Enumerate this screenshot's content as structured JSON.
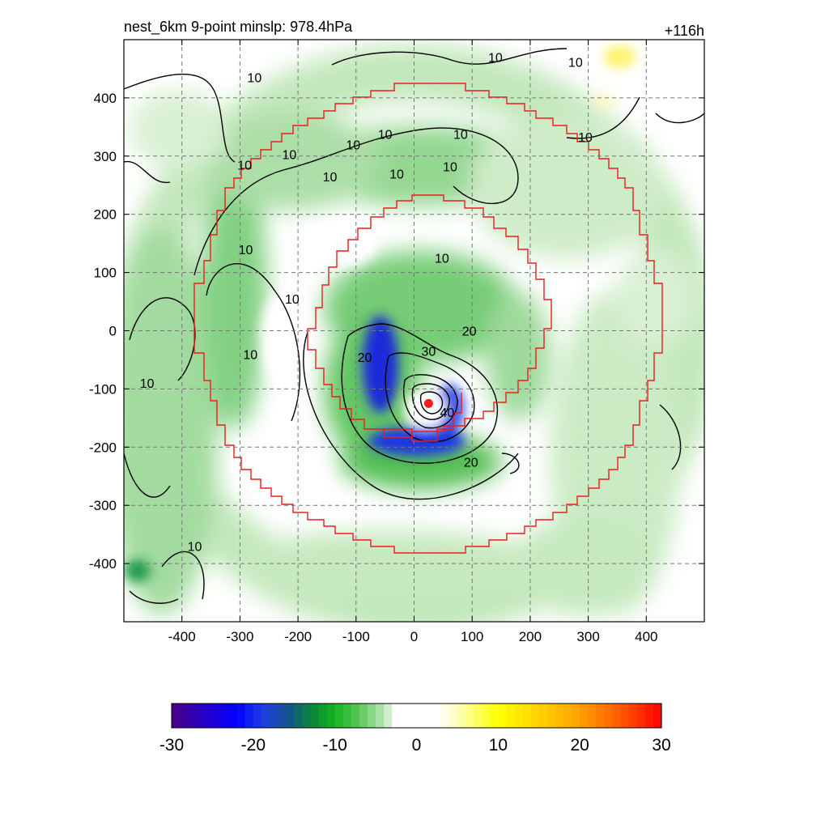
{
  "chart_data": {
    "type": "heatmap",
    "title_left": "nest_6km  9-point minslp: 978.4hPa",
    "title_right": "+116h",
    "xlabel": "",
    "ylabel": "",
    "xlim": [
      -500,
      500
    ],
    "ylim": [
      -500,
      500
    ],
    "x_ticks": [
      -400,
      -300,
      -200,
      -100,
      0,
      100,
      200,
      300,
      400
    ],
    "y_ticks": [
      -400,
      -300,
      -200,
      -100,
      0,
      100,
      200,
      300,
      400
    ],
    "grid": true,
    "colorbar": {
      "range": [
        -30,
        30
      ],
      "ticks": [
        -30,
        -20,
        -10,
        0,
        10,
        20,
        30
      ],
      "placement": "bottom"
    },
    "center_marker": {
      "x": 25,
      "y": -125,
      "color": "#ff1a1a"
    },
    "contour_labels": [
      {
        "text": "10",
        "x": -275,
        "y": 435
      },
      {
        "text": "10",
        "x": -105,
        "y": 320
      },
      {
        "text": "10",
        "x": -50,
        "y": 338
      },
      {
        "text": "10",
        "x": -145,
        "y": 265
      },
      {
        "text": "10",
        "x": 80,
        "y": 338
      },
      {
        "text": "10",
        "x": -30,
        "y": 270
      },
      {
        "text": "10",
        "x": 62,
        "y": 282
      },
      {
        "text": "10",
        "x": 140,
        "y": 470
      },
      {
        "text": "10",
        "x": 278,
        "y": 462
      },
      {
        "text": "10",
        "x": 295,
        "y": 333
      },
      {
        "text": "10",
        "x": -215,
        "y": 303
      },
      {
        "text": "10",
        "x": -292,
        "y": 285
      },
      {
        "text": "10",
        "x": -290,
        "y": 140
      },
      {
        "text": "10",
        "x": -210,
        "y": 55
      },
      {
        "text": "10",
        "x": 48,
        "y": 125
      },
      {
        "text": "10",
        "x": -282,
        "y": -40
      },
      {
        "text": "10",
        "x": -460,
        "y": -90
      },
      {
        "text": "10",
        "x": -378,
        "y": -370
      },
      {
        "text": "20",
        "x": -85,
        "y": -45
      },
      {
        "text": "20",
        "x": 95,
        "y": 0
      },
      {
        "text": "20",
        "x": 98,
        "y": -225
      },
      {
        "text": "30",
        "x": 25,
        "y": -35
      },
      {
        "text": "40",
        "x": 57,
        "y": -140
      }
    ]
  }
}
